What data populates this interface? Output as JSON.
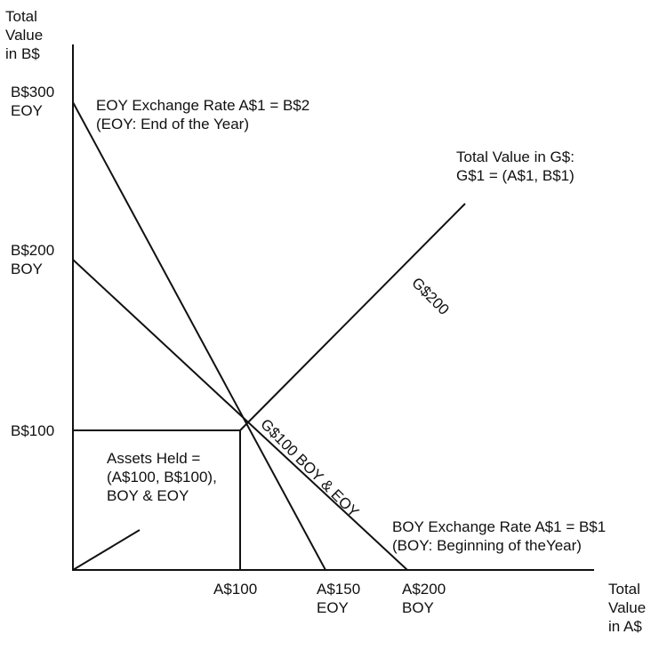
{
  "y_axis_label": [
    "Total",
    "Value",
    "in B$"
  ],
  "x_axis_label": [
    "Total",
    "Value",
    "in A$"
  ],
  "y_ticks": [
    [
      "B$300",
      "EOY"
    ],
    [
      "B$200",
      "BOY"
    ],
    [
      "B$100"
    ]
  ],
  "x_ticks": [
    [
      "A$100"
    ],
    [
      "A$150",
      "EOY"
    ],
    [
      "A$200",
      "BOY"
    ]
  ],
  "annotations": {
    "eoy_rate": [
      "EOY Exchange Rate A$1 = B$2",
      "(EOY: End of the Year)"
    ],
    "g_value": [
      "Total Value in G$:",
      "G$1 = (A$1, B$1)"
    ],
    "g200": "G$200",
    "g100": "G$100 BOY & EOY",
    "assets": [
      "Assets Held =",
      "(A$100, B$100),",
      "BOY & EOY"
    ],
    "boy_rate": [
      "BOY Exchange Rate A$1 = B$1",
      "(BOY: Beginning of theYear)"
    ]
  }
}
